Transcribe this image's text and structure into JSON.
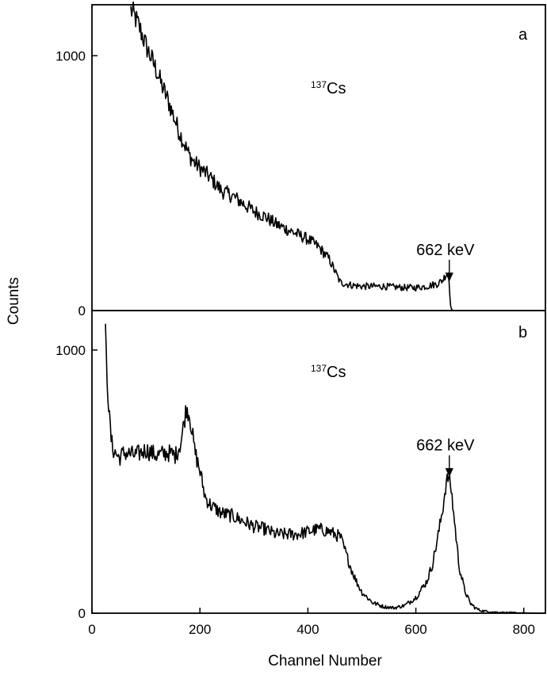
{
  "chart_data": {
    "type": "line",
    "xlabel": "Channel Number",
    "ylabel": "Counts",
    "xlim": [
      0,
      840
    ],
    "x_ticks": [
      "0",
      "200",
      "400",
      "600",
      "800"
    ],
    "panels": [
      {
        "panel_label": "a",
        "ylim": [
          0,
          1200
        ],
        "y_ticks": [
          "0",
          "1000"
        ],
        "isotope": {
          "mass": "137",
          "symbol": "Cs"
        },
        "annotation": {
          "text": "662 keV",
          "x": 662
        },
        "x": [
          72,
          80,
          90,
          100,
          110,
          120,
          130,
          140,
          150,
          160,
          170,
          180,
          190,
          200,
          220,
          240,
          260,
          280,
          300,
          320,
          340,
          360,
          380,
          400,
          420,
          440,
          460,
          480,
          500,
          520,
          540,
          560,
          580,
          600,
          620,
          630,
          640,
          650,
          655,
          660,
          662,
          664,
          666,
          670
        ],
        "values": [
          1180,
          1150,
          1100,
          1040,
          990,
          940,
          880,
          830,
          770,
          710,
          660,
          610,
          580,
          560,
          520,
          470,
          450,
          420,
          390,
          370,
          340,
          320,
          300,
          280,
          250,
          200,
          110,
          100,
          95,
          95,
          95,
          92,
          90,
          90,
          95,
          100,
          105,
          120,
          140,
          150,
          100,
          30,
          5,
          0
        ]
      },
      {
        "panel_label": "b",
        "ylim": [
          0,
          1150
        ],
        "y_ticks": [
          "0",
          "1000"
        ],
        "isotope": {
          "mass": "137",
          "symbol": "Cs"
        },
        "annotation": {
          "text": "662 keV",
          "x": 662
        },
        "x": [
          25,
          28,
          32,
          36,
          40,
          50,
          60,
          80,
          100,
          120,
          140,
          155,
          165,
          170,
          175,
          180,
          185,
          190,
          200,
          210,
          220,
          240,
          260,
          280,
          300,
          320,
          340,
          360,
          380,
          400,
          420,
          440,
          450,
          460,
          470,
          480,
          490,
          500,
          520,
          540,
          560,
          580,
          600,
          620,
          630,
          640,
          650,
          655,
          660,
          665,
          670,
          675,
          680,
          690,
          700,
          710,
          720,
          740,
          760,
          780,
          800,
          840
        ],
        "values": [
          1060,
          900,
          750,
          650,
          620,
          590,
          610,
          600,
          620,
          600,
          610,
          600,
          650,
          720,
          780,
          760,
          700,
          620,
          540,
          440,
          410,
          380,
          370,
          350,
          330,
          320,
          300,
          300,
          300,
          310,
          320,
          310,
          300,
          290,
          230,
          170,
          120,
          80,
          40,
          25,
          20,
          30,
          60,
          120,
          180,
          280,
          400,
          480,
          520,
          480,
          380,
          280,
          180,
          90,
          40,
          20,
          10,
          5,
          3,
          2,
          1,
          0
        ]
      }
    ]
  }
}
